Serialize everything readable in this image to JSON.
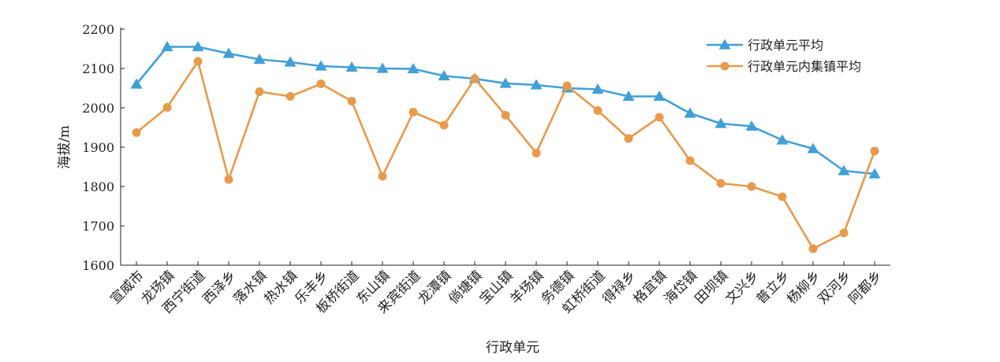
{
  "chart_data": {
    "type": "line",
    "title": "",
    "xlabel": "行政单元",
    "ylabel": "海拔/m",
    "ylim": [
      1600,
      2200
    ],
    "yticks": [
      1600,
      1700,
      1800,
      1900,
      2000,
      2100,
      2200
    ],
    "grid": false,
    "legend_position": "top-right",
    "categories": [
      "宣威市",
      "龙场镇",
      "西宁街道",
      "西泽乡",
      "落水镇",
      "热水镇",
      "乐丰乡",
      "板桥街道",
      "东山镇",
      "来宾街道",
      "龙潭镇",
      "倘塘镇",
      "宝山镇",
      "羊场镇",
      "务德镇",
      "虹桥街道",
      "得禄乡",
      "格宜镇",
      "海岱镇",
      "田坝镇",
      "文兴乡",
      "普立乡",
      "杨柳乡",
      "双河乡",
      "阿都乡"
    ],
    "series": [
      {
        "name": "行政单元平均",
        "color": "#41a0d7",
        "marker": "triangle",
        "values": [
          2060,
          2155,
          2155,
          2138,
          2123,
          2116,
          2106,
          2103,
          2100,
          2099,
          2081,
          2074,
          2062,
          2058,
          2050,
          2047,
          2029,
          2029,
          1986,
          1960,
          1953,
          1918,
          1896,
          1840,
          1832
        ]
      },
      {
        "name": "行政单元内集镇平均",
        "color": "#e89a4b",
        "marker": "circle",
        "values": [
          1937,
          2001,
          2118,
          1818,
          2041,
          2029,
          2061,
          2017,
          1826,
          1989,
          1956,
          2074,
          1981,
          1885,
          2056,
          1993,
          1922,
          1976,
          1866,
          1808,
          1800,
          1774,
          1642,
          1682,
          1890
        ]
      }
    ]
  }
}
